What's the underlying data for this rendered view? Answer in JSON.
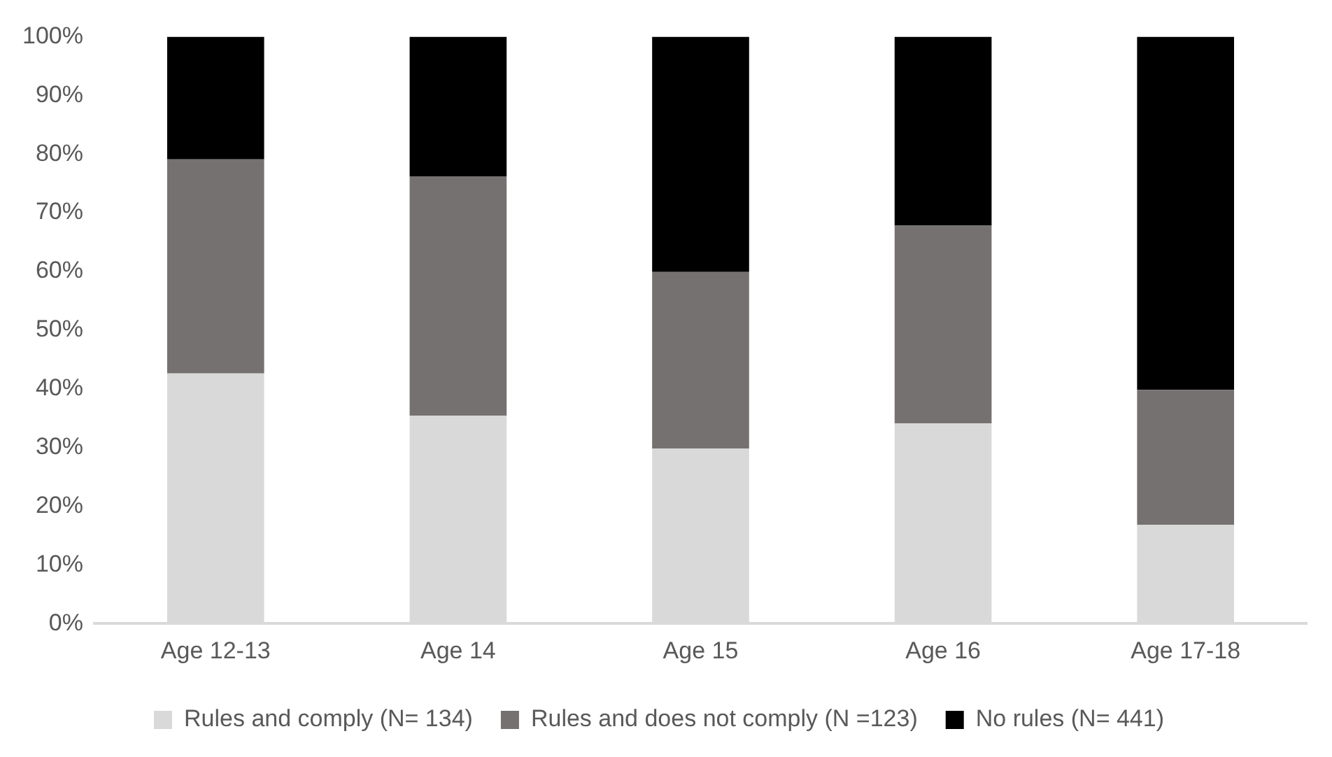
{
  "chart_data": {
    "type": "bar",
    "stacked": true,
    "categories": [
      "Age 12-13",
      "Age 14",
      "Age 15",
      "Age 16",
      "Age 17-18"
    ],
    "series": [
      {
        "name": "Rules and comply (N= 134)",
        "color": "#d9d9d9",
        "values": [
          42.6,
          35.4,
          29.8,
          34.1,
          16.8
        ]
      },
      {
        "name": "Rules and does not comply (N =123)",
        "color": "#767171",
        "values": [
          36.5,
          40.8,
          30.1,
          33.7,
          23.0
        ]
      },
      {
        "name": "No rules (N= 441)",
        "color": "#000000",
        "values": [
          20.9,
          23.8,
          40.1,
          32.2,
          60.2
        ]
      }
    ],
    "ylim": [
      0,
      100
    ],
    "yticks": [
      {
        "value": 0,
        "label": "0%"
      },
      {
        "value": 10,
        "label": "10%"
      },
      {
        "value": 20,
        "label": "20%"
      },
      {
        "value": 30,
        "label": "30%"
      },
      {
        "value": 40,
        "label": "40%"
      },
      {
        "value": 50,
        "label": "50%"
      },
      {
        "value": 60,
        "label": "60%"
      },
      {
        "value": 70,
        "label": "70%"
      },
      {
        "value": 80,
        "label": "80%"
      },
      {
        "value": 90,
        "label": "90%"
      },
      {
        "value": 100,
        "label": "100%"
      }
    ],
    "grid": false,
    "legend": "bottom"
  }
}
